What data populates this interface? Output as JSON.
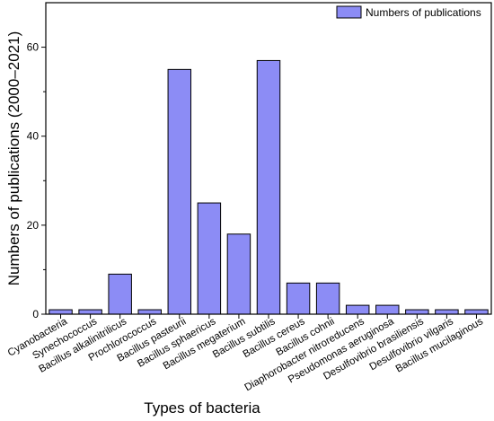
{
  "chart_data": {
    "type": "bar",
    "categories": [
      "Cyanobacteria",
      "Synechococcus",
      "Bacillus alkalinitrilicus",
      "Prochlorococcus",
      "Bacillus pasteurii",
      "Bacillus sphaericus",
      "Bacillus megaterium",
      "Bacillus subtilis",
      "Bacillus cereus",
      "Bacillus cohnii",
      "Diaphorobacter nitroreducens",
      "Pseudomonas aeruginosa",
      "Desulfovibrio brasiliensis",
      "Desulfovibrio vilgaris",
      "Bacillus mucilaginous"
    ],
    "series": [
      {
        "name": "Numbers of publications",
        "values": [
          1,
          1,
          9,
          1,
          55,
          25,
          18,
          57,
          7,
          7,
          2,
          2,
          1,
          1,
          1
        ],
        "color": "#8c8cf5"
      }
    ],
    "xlabel": "Types of bacteria",
    "ylabel": "Numbers of publications (2000–2021)",
    "ylim": [
      0,
      70
    ],
    "yticks": [
      0,
      20,
      40,
      60
    ],
    "grid": false,
    "legend_position": "top-right"
  }
}
